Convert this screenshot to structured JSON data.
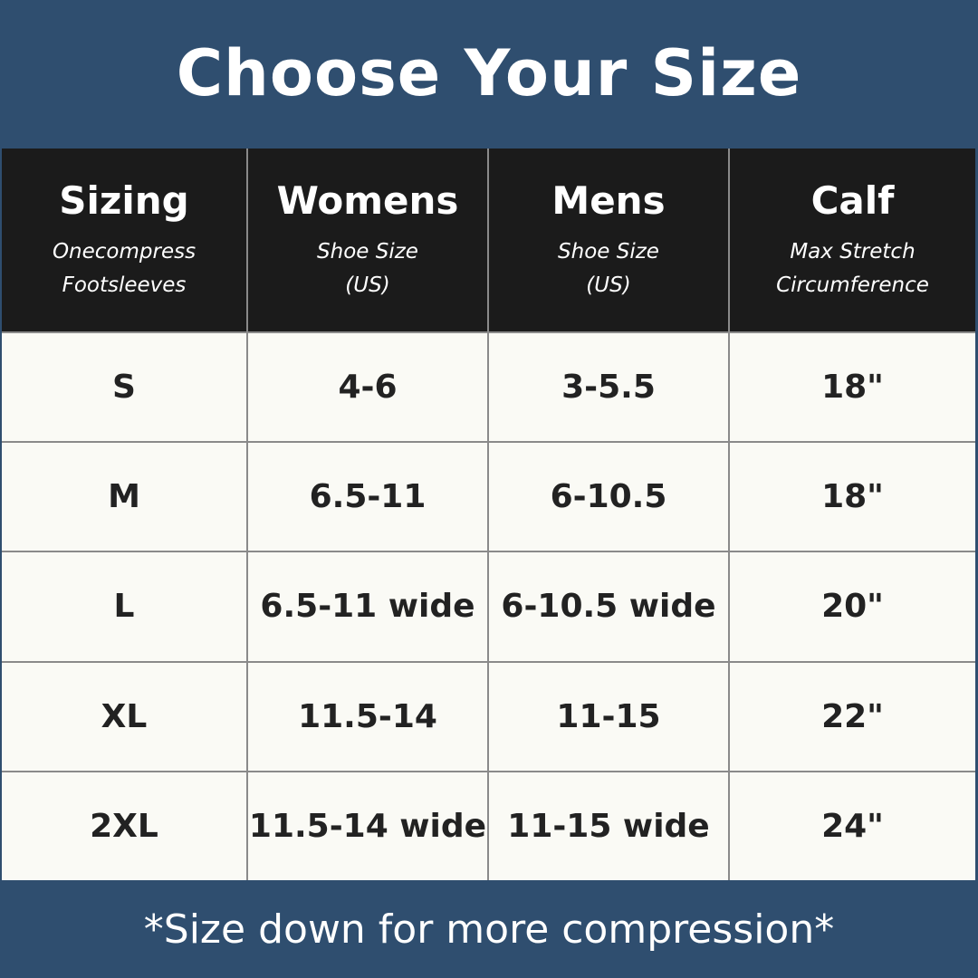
{
  "header": {
    "title": "Choose Your Size"
  },
  "table": {
    "columns": [
      {
        "title": "Sizing",
        "subtitle": [
          "Onecompress",
          "Footsleeves"
        ]
      },
      {
        "title": "Womens",
        "subtitle": [
          "Shoe Size",
          "(US)"
        ]
      },
      {
        "title": "Mens",
        "subtitle": [
          "Shoe Size",
          "(US)"
        ]
      },
      {
        "title": "Calf",
        "subtitle": [
          "Max Stretch",
          "Circumference"
        ]
      }
    ],
    "rows": [
      [
        "S",
        "4-6",
        "3-5.5",
        "18\""
      ],
      [
        "M",
        "6.5-11",
        "6-10.5",
        "18\""
      ],
      [
        "L",
        "6.5-11 wide",
        "6-10.5 wide",
        "20\""
      ],
      [
        "XL",
        "11.5-14",
        "11-15",
        "22\""
      ],
      [
        "2XL",
        "11.5-14 wide",
        "11-15 wide",
        "24\""
      ]
    ]
  },
  "footer": {
    "note": "*Size down for more compression*"
  }
}
